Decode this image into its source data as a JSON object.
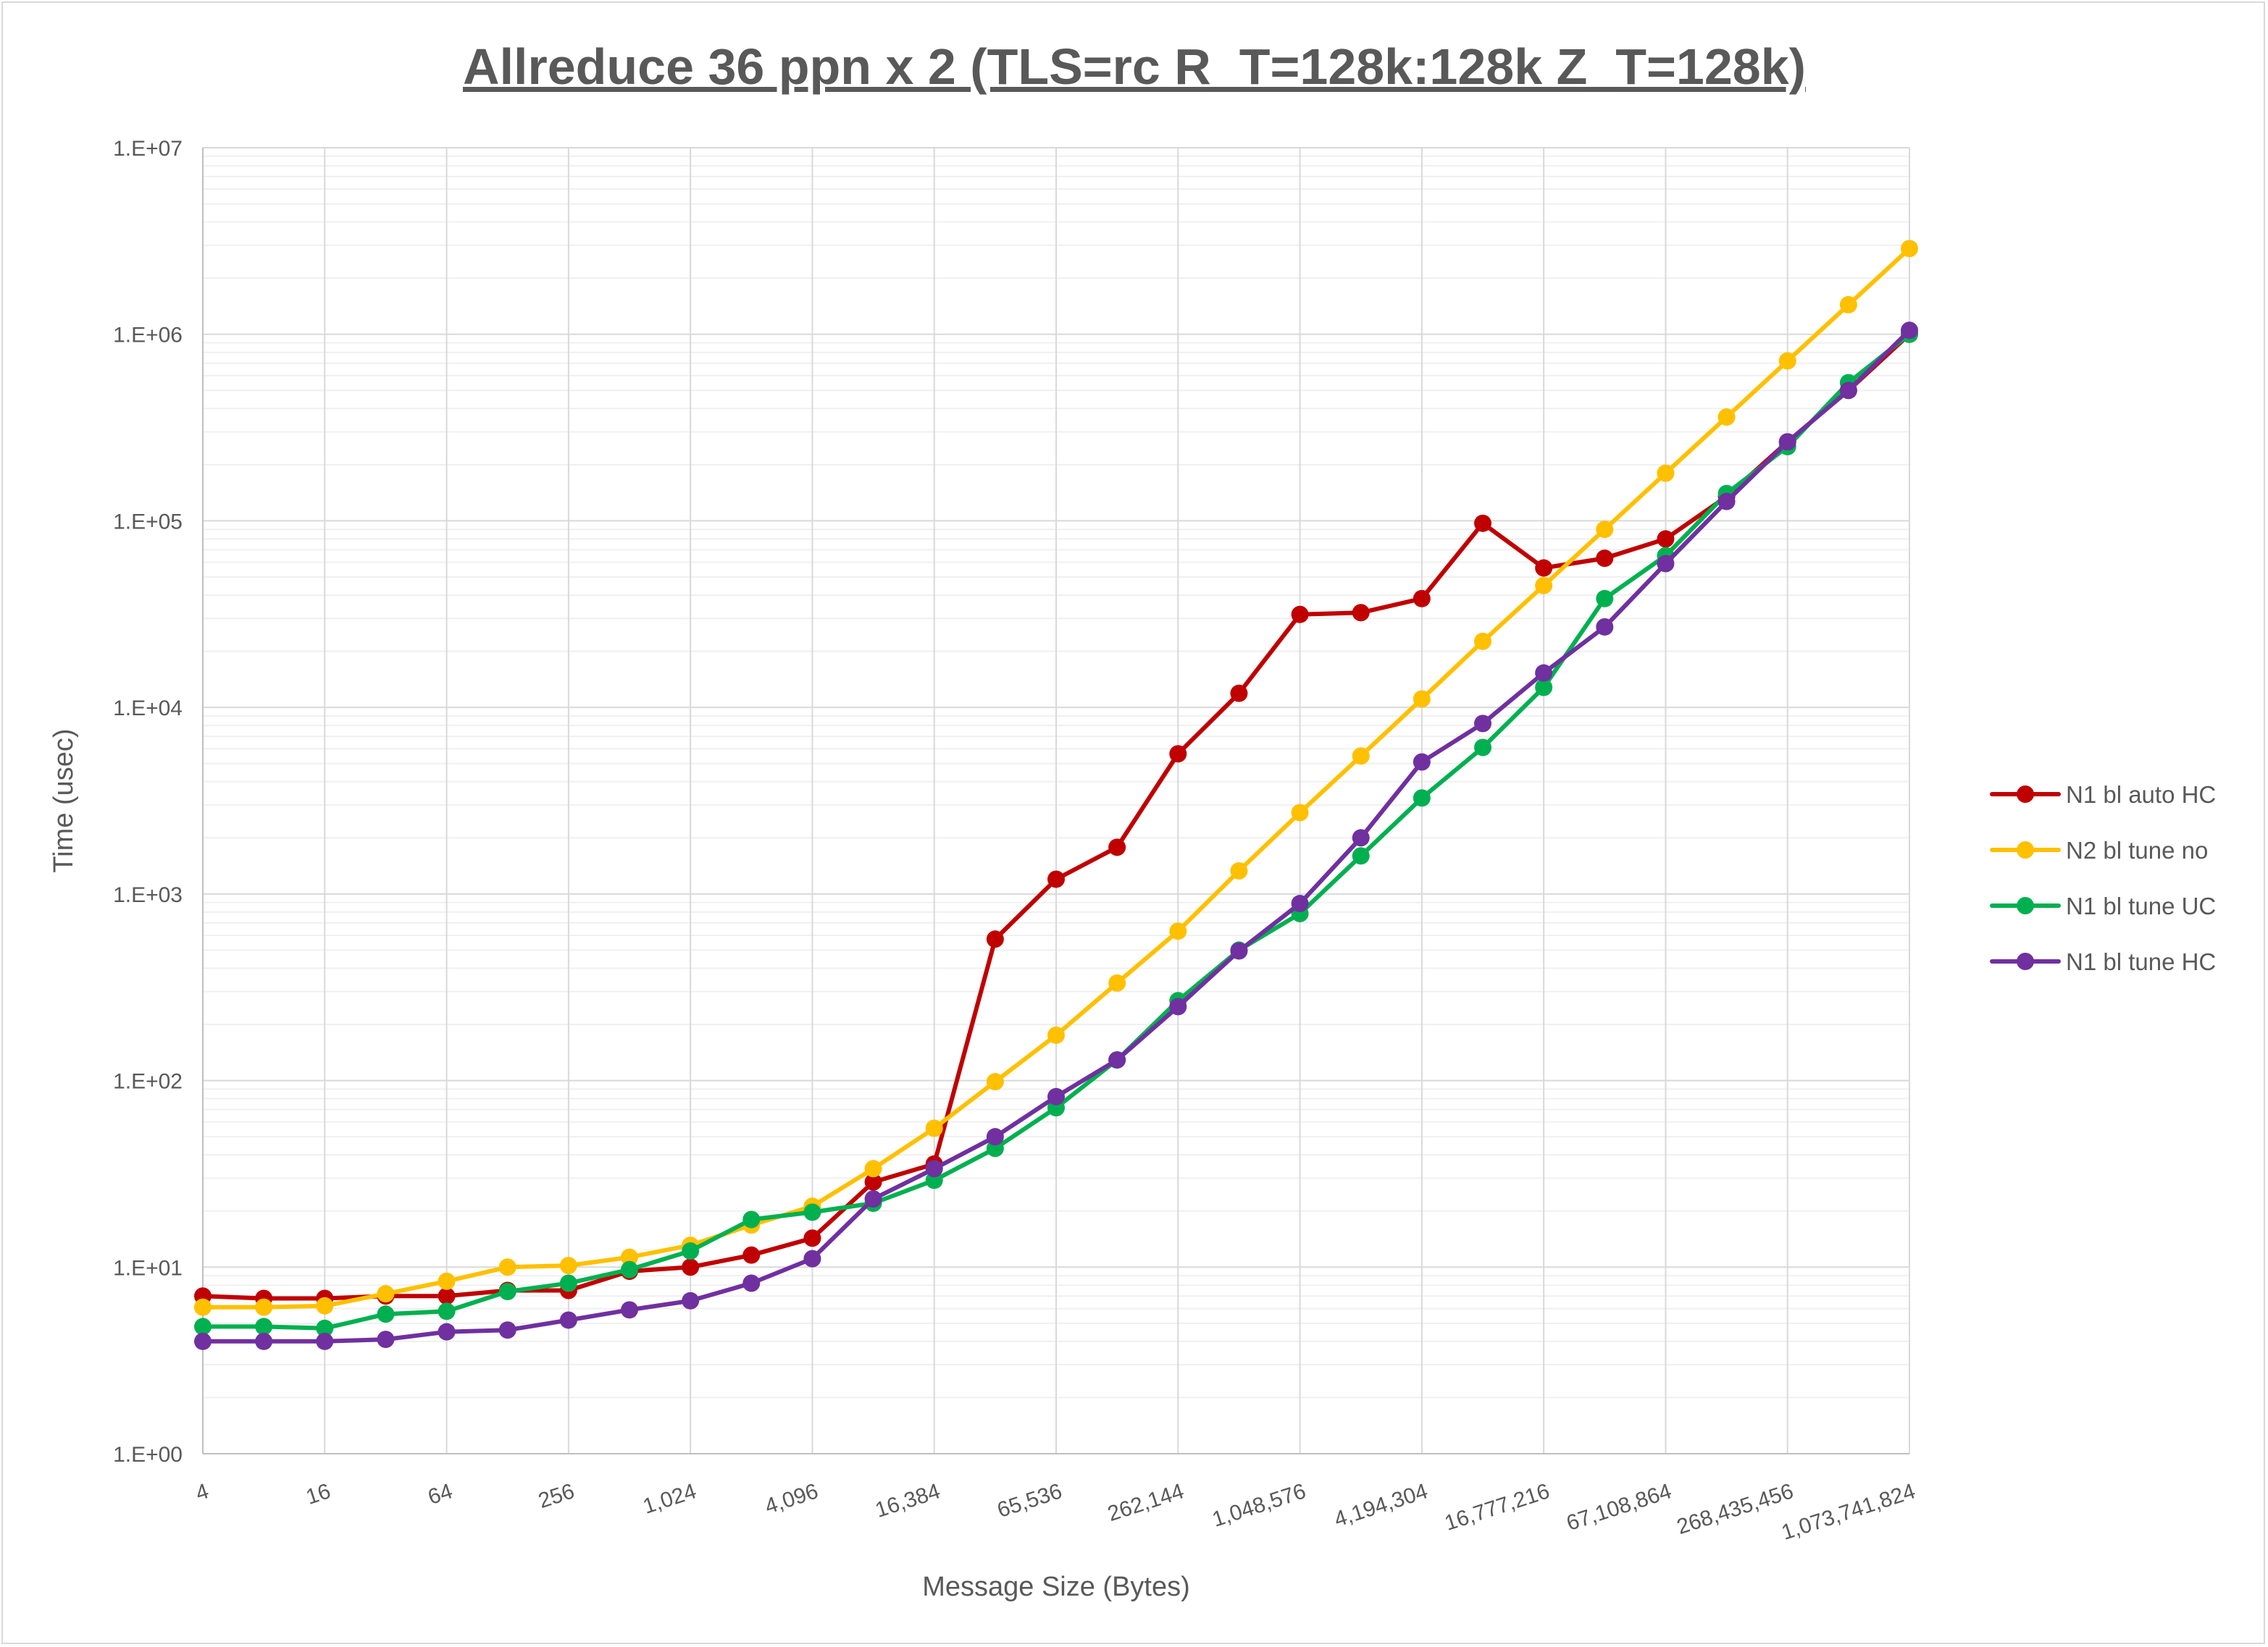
{
  "chart_data": {
    "type": "line",
    "title": "Allreduce 36 ppn x 2 (TLS=rc R_T=128k:128k Z_T=128k)",
    "xlabel": "Message Size (Bytes)",
    "ylabel": "Time (usec)",
    "x_scale": "log2",
    "y_scale": "log10",
    "ylim": [
      1,
      10000000
    ],
    "grid": true,
    "legend_position": "right",
    "x": [
      4,
      8,
      16,
      32,
      64,
      128,
      256,
      512,
      1024,
      2048,
      4096,
      8192,
      16384,
      32768,
      65536,
      131072,
      262144,
      524288,
      1048576,
      2097152,
      4194304,
      8388608,
      16777216,
      33554432,
      67108864,
      134217728,
      268435456,
      536870912,
      1073741824
    ],
    "x_tick_labels": [
      "4",
      "16",
      "64",
      "256",
      "1,024",
      "4,096",
      "16,384",
      "65,536",
      "262,144",
      "1,048,576",
      "4,194,304",
      "16,777,216",
      "67,108,864",
      "268,435,456",
      "1,073,741,824"
    ],
    "y_tick_labels": [
      "1.E+00",
      "1.E+01",
      "1.E+02",
      "1.E+03",
      "1.E+04",
      "1.E+05",
      "1.E+06",
      "1.E+07"
    ],
    "series": [
      {
        "name": "N1 bl auto HC",
        "color": "#c00000",
        "values": [
          7.0,
          6.8,
          6.8,
          7.0,
          7.0,
          7.5,
          7.5,
          9.5,
          10.0,
          11.6,
          14.3,
          28.6,
          35.7,
          573,
          1200,
          1780,
          5640,
          11900,
          31500,
          32200,
          38300,
          97000,
          55900,
          63000,
          80000,
          135000,
          265000,
          500000,
          1000000
        ]
      },
      {
        "name": "N2 bl tune no",
        "color": "#ffc000",
        "values": [
          6.1,
          6.1,
          6.2,
          7.2,
          8.4,
          10.0,
          10.2,
          11.3,
          13.1,
          16.8,
          21.2,
          33.7,
          55.5,
          98.6,
          175,
          333,
          632,
          1330,
          2730,
          5490,
          11100,
          22600,
          45000,
          90000,
          180000,
          360000,
          720000,
          1440000,
          2880000
        ]
      },
      {
        "name": "N1 bl tune UC",
        "color": "#00b050",
        "values": [
          4.8,
          4.8,
          4.7,
          5.6,
          5.8,
          7.4,
          8.2,
          9.7,
          12.2,
          18.0,
          19.7,
          22,
          29.2,
          43.3,
          71.5,
          129,
          268,
          500,
          785,
          1600,
          3270,
          6100,
          12800,
          38300,
          65000,
          140000,
          250000,
          550000,
          1000000
        ]
      },
      {
        "name": "N1 bl tune HC",
        "color": "#7030a0",
        "values": [
          4.0,
          4.0,
          4.0,
          4.1,
          4.5,
          4.6,
          5.2,
          5.9,
          6.6,
          8.2,
          11.1,
          23.2,
          33.7,
          50,
          82,
          129,
          249,
          495,
          889,
          2000,
          5100,
          8200,
          15300,
          27000,
          59000,
          127000,
          265000,
          500000,
          1050000
        ]
      }
    ]
  }
}
